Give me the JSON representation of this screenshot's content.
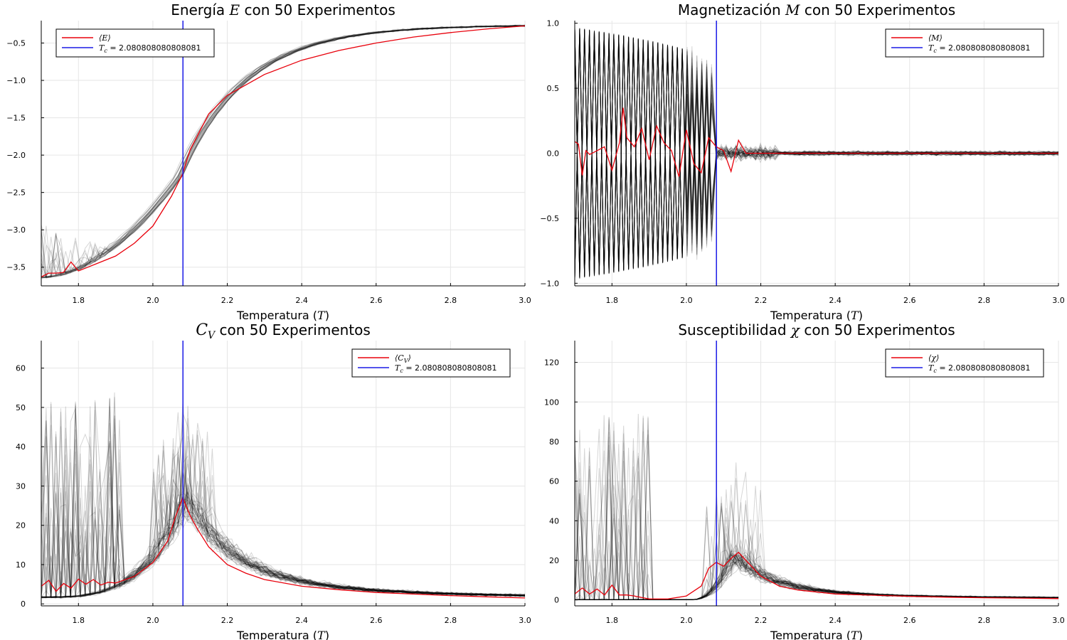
{
  "figure": {
    "tc_value": 2.080808080808081,
    "colors": {
      "mean": "#e8000b",
      "tc": "#1a1ae6",
      "experiments": "#000000",
      "grid": "#e6e6e6"
    },
    "n_experiments": 50
  },
  "chart_data": [
    {
      "type": "line",
      "title": "Energía E  con 50 Experimentos",
      "title_parts": [
        "Energía ",
        "E",
        "  con 50 Experimentos"
      ],
      "xlabel_parts": [
        "Temperatura (",
        "T",
        ")"
      ],
      "xlim": [
        1.7,
        3.0
      ],
      "ylim": [
        -3.75,
        -0.2
      ],
      "xticks": [
        1.8,
        2.0,
        2.2,
        2.4,
        2.6,
        2.8,
        3.0
      ],
      "xtick_labels": [
        "1.8",
        "2.0",
        "2.2",
        "2.4",
        "2.6",
        "2.8",
        "3.0"
      ],
      "yticks": [
        -3.5,
        -3.0,
        -2.5,
        -2.0,
        -1.5,
        -1.0,
        -0.5
      ],
      "ytick_labels": [
        "−3.5",
        "−3.0",
        "−2.5",
        "−2.0",
        "−1.5",
        "−1.0",
        "−0.5"
      ],
      "grid": true,
      "legend": {
        "placement": "top-left",
        "entries": [
          "⟨E⟩",
          "T_c = 2.080808080808081"
        ]
      },
      "series": [
        {
          "name": "⟨E⟩",
          "x": [
            1.7,
            1.72,
            1.74,
            1.76,
            1.78,
            1.8,
            1.85,
            1.9,
            1.95,
            2.0,
            2.05,
            2.08,
            2.1,
            2.15,
            2.2,
            2.3,
            2.4,
            2.5,
            2.6,
            2.7,
            2.8,
            2.9,
            3.0
          ],
          "values": [
            -3.63,
            -3.58,
            -3.58,
            -3.57,
            -3.43,
            -3.55,
            -3.45,
            -3.35,
            -3.18,
            -2.95,
            -2.55,
            -2.25,
            -1.93,
            -1.45,
            -1.2,
            -0.92,
            -0.73,
            -0.6,
            -0.5,
            -0.42,
            -0.36,
            -0.31,
            -0.27
          ]
        }
      ],
      "tc": 2.080808080808081,
      "band": {
        "kind": "sigmoid",
        "spread": 0.14,
        "noise_low_t": 0.5
      }
    },
    {
      "type": "line",
      "title": "Magnetización M  con 50 Experimentos",
      "title_parts": [
        "Magnetización ",
        "M",
        "  con 50 Experimentos"
      ],
      "xlabel_parts": [
        "Temperatura (",
        "T",
        ")"
      ],
      "xlim": [
        1.7,
        3.0
      ],
      "ylim": [
        -1.02,
        1.02
      ],
      "xticks": [
        1.8,
        2.0,
        2.2,
        2.4,
        2.6,
        2.8,
        3.0
      ],
      "xtick_labels": [
        "1.8",
        "2.0",
        "2.2",
        "2.4",
        "2.6",
        "2.8",
        "3.0"
      ],
      "yticks": [
        -1.0,
        -0.5,
        0.0,
        0.5,
        1.0
      ],
      "ytick_labels": [
        "−1.0",
        "−0.5",
        "0.0",
        "0.5",
        "1.0"
      ],
      "grid": true,
      "legend": {
        "placement": "top-right",
        "entries": [
          "⟨M⟩",
          "T_c = 2.080808080808081"
        ]
      },
      "series": [
        {
          "name": "⟨M⟩",
          "x": [
            1.7,
            1.71,
            1.72,
            1.73,
            1.74,
            1.76,
            1.78,
            1.8,
            1.82,
            1.83,
            1.84,
            1.86,
            1.88,
            1.9,
            1.92,
            1.94,
            1.96,
            1.98,
            2.0,
            2.02,
            2.04,
            2.06,
            2.08,
            2.1,
            2.12,
            2.14,
            2.16,
            2.2,
            2.3,
            2.4,
            2.5,
            2.6,
            2.7,
            2.8,
            2.9,
            3.0
          ],
          "values": [
            0.09,
            0.07,
            -0.17,
            0.02,
            -0.01,
            0.02,
            0.05,
            -0.13,
            0.08,
            0.35,
            0.12,
            0.05,
            0.19,
            -0.05,
            0.21,
            0.08,
            0.02,
            -0.18,
            0.18,
            -0.08,
            -0.15,
            0.12,
            0.05,
            0.02,
            -0.14,
            0.1,
            0.0,
            0.0,
            0.0,
            0.0,
            0.0,
            0.0,
            0.0,
            0.0,
            0.0,
            0.0
          ]
        }
      ],
      "tc": 2.080808080808081,
      "band": {
        "kind": "magnetization"
      }
    },
    {
      "type": "line",
      "title": "C_V  con 50 Experimentos",
      "title_parts": [
        "C",
        "V",
        "  con 50 Experimentos"
      ],
      "xlabel_parts": [
        "Temperatura (",
        "T",
        ")"
      ],
      "xlim": [
        1.7,
        3.0
      ],
      "ylim": [
        -0.5,
        67
      ],
      "xticks": [
        1.8,
        2.0,
        2.2,
        2.4,
        2.6,
        2.8,
        3.0
      ],
      "xtick_labels": [
        "1.8",
        "2.0",
        "2.2",
        "2.4",
        "2.6",
        "2.8",
        "3.0"
      ],
      "yticks": [
        0,
        10,
        20,
        30,
        40,
        50,
        60
      ],
      "ytick_labels": [
        "0",
        "10",
        "20",
        "30",
        "40",
        "50",
        "60"
      ],
      "grid": true,
      "legend": {
        "placement": "top-right",
        "entries": [
          "⟨C_V⟩",
          "T_c = 2.080808080808081"
        ]
      },
      "series": [
        {
          "name": "⟨C_V⟩",
          "x": [
            1.7,
            1.72,
            1.74,
            1.76,
            1.78,
            1.8,
            1.82,
            1.84,
            1.86,
            1.88,
            1.9,
            1.95,
            2.0,
            2.04,
            2.06,
            2.08,
            2.1,
            2.12,
            2.15,
            2.2,
            2.25,
            2.3,
            2.4,
            2.5,
            2.6,
            2.7,
            2.8,
            2.9,
            3.0
          ],
          "values": [
            4.5,
            6.0,
            3.2,
            5.2,
            4.0,
            6.3,
            5.0,
            6.2,
            4.8,
            5.5,
            5.3,
            7.0,
            10.5,
            16.0,
            22.0,
            27.0,
            22.5,
            19.0,
            14.5,
            10.0,
            7.8,
            6.2,
            4.5,
            3.6,
            2.9,
            2.5,
            2.1,
            1.8,
            1.5
          ]
        }
      ],
      "tc": 2.080808080808081,
      "band": {
        "kind": "peak",
        "peak": 27,
        "base": 1.7
      }
    },
    {
      "type": "line",
      "title": "Susceptibilidad χ  con 50 Experimentos",
      "title_parts": [
        "Susceptibilidad ",
        "χ",
        "  con 50 Experimentos"
      ],
      "xlabel_parts": [
        "Temperatura (",
        "T",
        ")"
      ],
      "xlim": [
        1.7,
        3.0
      ],
      "ylim": [
        -3,
        131
      ],
      "xticks": [
        1.8,
        2.0,
        2.2,
        2.4,
        2.6,
        2.8,
        3.0
      ],
      "xtick_labels": [
        "1.8",
        "2.0",
        "2.2",
        "2.4",
        "2.6",
        "2.8",
        "3.0"
      ],
      "yticks": [
        0,
        20,
        40,
        60,
        80,
        100,
        120
      ],
      "ytick_labels": [
        "0",
        "20",
        "40",
        "60",
        "80",
        "100",
        "120"
      ],
      "grid": true,
      "legend": {
        "placement": "top-right",
        "entries": [
          "⟨χ⟩",
          "T_c = 2.080808080808081"
        ]
      },
      "series": [
        {
          "name": "⟨χ⟩",
          "x": [
            1.7,
            1.72,
            1.74,
            1.76,
            1.78,
            1.8,
            1.82,
            1.84,
            1.86,
            1.9,
            1.95,
            2.0,
            2.04,
            2.06,
            2.08,
            2.1,
            2.12,
            2.14,
            2.16,
            2.2,
            2.25,
            2.3,
            2.4,
            2.5,
            2.6,
            2.7,
            2.8,
            2.9,
            3.0
          ],
          "values": [
            3.0,
            6.0,
            3.0,
            5.5,
            2.5,
            7.5,
            2.5,
            2.5,
            2.0,
            0.5,
            0.5,
            2.0,
            7.0,
            16.0,
            19.0,
            17.0,
            21.0,
            24.0,
            20.0,
            12.0,
            7.0,
            5.0,
            3.0,
            2.4,
            1.8,
            1.4,
            1.1,
            0.9,
            0.7
          ]
        }
      ],
      "tc": 2.080808080808081,
      "band": {
        "kind": "chi"
      }
    }
  ]
}
